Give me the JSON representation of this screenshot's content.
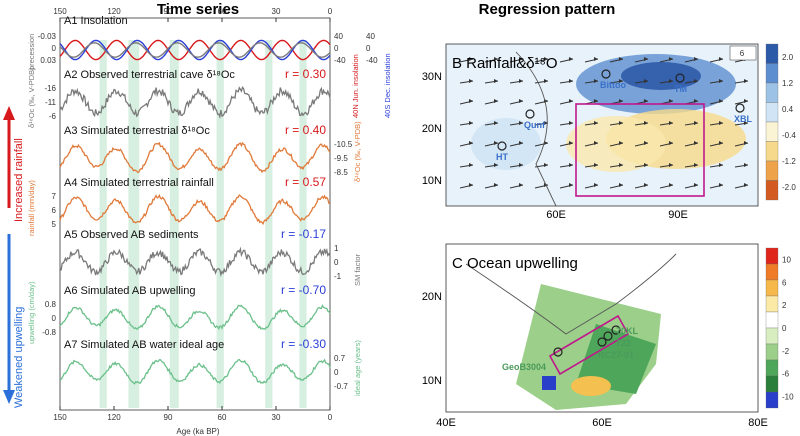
{
  "titles": {
    "left": "Time series",
    "right": "Regression pattern"
  },
  "side_labels": {
    "top": "Increased rainfall",
    "bottom": "Weakened upwelling"
  },
  "colors": {
    "red": "#d7191c",
    "blue": "#2b3fd9",
    "gray": "#7a7a7a",
    "orange": "#e07a3a",
    "green": "#6cc08b",
    "shade": "#d6efe0",
    "magenta": "#c0188c",
    "text_blue": "#3a6fc8"
  },
  "chart_data": [
    {
      "type": "line",
      "id": "time_series",
      "title": "Time series",
      "xlabel": "Age (ka BP)",
      "xlim": [
        150,
        0
      ],
      "x_ticks": [
        "150",
        "120",
        "90",
        "60",
        "30",
        "0"
      ],
      "shaded_bands_ka": [
        [
          128,
          124
        ],
        [
          112,
          106
        ],
        [
          89,
          84
        ],
        [
          63,
          59
        ],
        [
          36,
          32
        ],
        [
          17,
          13
        ]
      ],
      "panels": [
        {
          "id": "A1",
          "label": "A1 Insolation",
          "left_axis": "precession",
          "left_ticks": [
            "-0.03",
            "0",
            "0.03"
          ],
          "right_axis_1": "40N Jun. insolation",
          "right_axis_2": "40S Dec. insolation",
          "right_ticks": [
            "40",
            "0",
            "-40"
          ],
          "series": [
            {
              "color": "red",
              "amplitude": 0.8,
              "period_ka": 23,
              "phase": 0.6
            },
            {
              "color": "blue",
              "amplitude": 0.8,
              "period_ka": 23,
              "phase": 3.74
            },
            {
              "color": "gray",
              "amplitude": 0.6,
              "period_ka": 23,
              "phase": 3.5
            }
          ]
        },
        {
          "id": "A2",
          "label": "A2 Observed terrestrial cave δ¹⁸Oc",
          "r": "r = 0.30",
          "r_color": "red",
          "axis_title": "δ¹⁸Oc (‰, V-PDB)",
          "ticks": [
            "-16",
            "-11",
            "-6"
          ],
          "color": "gray"
        },
        {
          "id": "A3",
          "label": "A3 Simulated terrestrial δ¹⁸Oc",
          "r": "r = 0.40",
          "r_color": "red",
          "axis_title": "δ¹⁸Oc (‰, V-PDB)",
          "ticks": [
            "-10.5",
            "-9.5",
            "-8.5"
          ],
          "color": "orange"
        },
        {
          "id": "A4",
          "label": "A4 Simulated terrestrial rainfall",
          "r": "r = 0.57",
          "r_color": "red",
          "axis_title": "rainfall (mm/day)",
          "ticks": [
            "7",
            "6",
            "5"
          ],
          "color": "orange"
        },
        {
          "id": "A5",
          "label": "A5 Observed AB sediments",
          "r": "r = -0.17",
          "r_color": "blue",
          "axis_title": "SM factor",
          "ticks": [
            "1",
            "0",
            "-1"
          ],
          "color": "gray"
        },
        {
          "id": "A6",
          "label": "A6 Simulated AB upwelling",
          "r": "r = -0.70",
          "r_color": "blue",
          "axis_title": "upwelling (cm/day)",
          "ticks": [
            "0.8",
            "0",
            "-0.8"
          ],
          "color": "green"
        },
        {
          "id": "A7",
          "label": "A7 Simulated AB water ideal age",
          "r": "r = -0.30",
          "r_color": "blue",
          "axis_title": "ideal age (years)",
          "ticks": [
            "0.7",
            "0",
            "-0.7"
          ],
          "color": "green"
        }
      ]
    },
    {
      "type": "heatmap",
      "id": "map_B",
      "title": "B Rainfall&δ¹⁸O",
      "x_ticks": [
        "60E",
        "90E"
      ],
      "y_ticks": [
        "30N",
        "20N",
        "10N"
      ],
      "colorbar": [
        "2.0",
        "1.2",
        "0.4",
        "-0.4",
        "-1.2",
        "-2.0"
      ],
      "sites": [
        "Bittoo",
        "TM",
        "Qunf",
        "XBL",
        "HT"
      ],
      "vector_scale": "6"
    },
    {
      "type": "heatmap",
      "id": "map_C",
      "title": "C Ocean upwelling",
      "x_ticks": [
        "40E",
        "60E",
        "80E"
      ],
      "y_ticks": [
        "20N",
        "10N"
      ],
      "colorbar": [
        "10",
        "6",
        "2",
        "0",
        "-2",
        "-6",
        "-10"
      ],
      "sites": [
        "GeoB3004",
        "70KL",
        "722",
        "RC27-91"
      ]
    }
  ]
}
